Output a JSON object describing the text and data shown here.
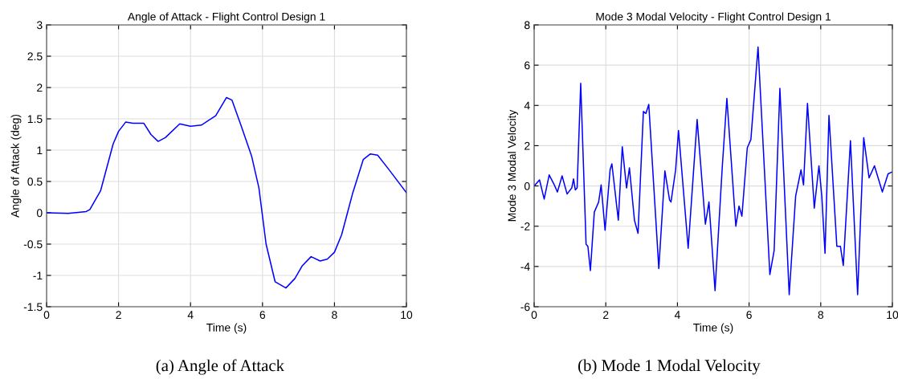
{
  "chart_data": [
    {
      "type": "line",
      "title": "Angle of Attack - Flight Control Design 1",
      "xlabel": "Time (s)",
      "ylabel": "Angle of Attack (deg)",
      "annotations": [
        "(a) Angle of Attack"
      ],
      "xlim": [
        0,
        10
      ],
      "xticks": [
        0,
        2,
        4,
        6,
        8,
        10
      ],
      "ylim": [
        -1.5,
        3
      ],
      "yticks": [
        -1.5,
        -1,
        -0.5,
        0,
        0.5,
        1,
        1.5,
        2,
        2.5,
        3
      ],
      "grid": true,
      "series": [
        {
          "color": "#0000ff",
          "x": [
            0,
            0.6,
            1.1,
            1.2,
            1.5,
            1.85,
            2.0,
            2.2,
            2.4,
            2.7,
            2.9,
            3.1,
            3.3,
            3.7,
            4.0,
            4.3,
            4.7,
            5.0,
            5.15,
            5.4,
            5.7,
            5.9,
            6.1,
            6.35,
            6.65,
            6.9,
            7.1,
            7.35,
            7.6,
            7.8,
            8.0,
            8.2,
            8.5,
            8.8,
            9.0,
            9.2,
            9.5,
            10
          ],
          "values": [
            0,
            -0.01,
            0.02,
            0.05,
            0.35,
            1.1,
            1.3,
            1.45,
            1.43,
            1.43,
            1.25,
            1.14,
            1.2,
            1.42,
            1.38,
            1.4,
            1.55,
            1.84,
            1.8,
            1.4,
            0.9,
            0.4,
            -0.5,
            -1.1,
            -1.2,
            -1.05,
            -0.85,
            -0.7,
            -0.77,
            -0.74,
            -0.63,
            -0.35,
            0.3,
            0.85,
            0.94,
            0.92,
            0.7,
            0.32
          ]
        }
      ]
    },
    {
      "type": "line",
      "title": "Mode 3 Modal Velocity - Flight Control Design 1",
      "xlabel": "Time (s)",
      "ylabel": "Mode 3 Modal Velocity",
      "annotations": [
        "(b) Mode 1 Modal Velocity"
      ],
      "xlim": [
        0,
        10
      ],
      "xticks": [
        0,
        2,
        4,
        6,
        8,
        10
      ],
      "ylim": [
        -6,
        8
      ],
      "yticks": [
        -6,
        -4,
        -2,
        0,
        2,
        4,
        6,
        8
      ],
      "grid": true,
      "series": [
        {
          "color": "#0000ff",
          "x": [
            0,
            0.15,
            0.28,
            0.42,
            0.55,
            0.65,
            0.78,
            0.92,
            1.05,
            1.1,
            1.15,
            1.2,
            1.3,
            1.45,
            1.5,
            1.57,
            1.68,
            1.8,
            1.87,
            1.98,
            2.12,
            2.17,
            2.35,
            2.46,
            2.58,
            2.66,
            2.8,
            2.9,
            3.05,
            3.12,
            3.2,
            3.48,
            3.65,
            3.78,
            3.82,
            3.95,
            4.03,
            4.3,
            4.55,
            4.78,
            4.88,
            5.05,
            5.25,
            5.38,
            5.63,
            5.72,
            5.8,
            5.95,
            6.05,
            6.25,
            6.58,
            6.7,
            6.86,
            7.12,
            7.3,
            7.45,
            7.52,
            7.63,
            7.82,
            7.95,
            8.03,
            8.12,
            8.23,
            8.45,
            8.55,
            8.63,
            8.83,
            9.03,
            9.2,
            9.35,
            9.5,
            9.72,
            9.88,
            10
          ],
          "values": [
            0,
            0.3,
            -0.65,
            0.55,
            0.1,
            -0.3,
            0.5,
            -0.4,
            -0.1,
            0.35,
            -0.2,
            -0.1,
            5.1,
            -2.9,
            -3.0,
            -4.2,
            -1.3,
            -0.8,
            0.05,
            -2.2,
            0.8,
            1.1,
            -1.7,
            1.95,
            -0.1,
            0.9,
            -1.7,
            -2.35,
            3.7,
            3.6,
            4.05,
            -4.1,
            0.75,
            -0.7,
            -0.8,
            0.8,
            2.75,
            -3.1,
            3.3,
            -1.9,
            -0.8,
            -5.2,
            0.9,
            4.35,
            -2.0,
            -1.0,
            -1.5,
            1.9,
            2.3,
            6.9,
            -4.4,
            -3.2,
            4.85,
            -5.4,
            -0.5,
            0.8,
            0.05,
            4.1,
            -1.1,
            1.0,
            -0.5,
            -3.35,
            3.5,
            -3.0,
            -3.0,
            -3.95,
            2.25,
            -5.4,
            2.4,
            0.4,
            1.0,
            -0.3,
            0.6,
            0.7
          ]
        }
      ]
    }
  ]
}
